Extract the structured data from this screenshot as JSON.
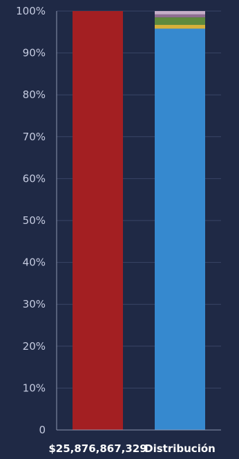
{
  "chart_data": {
    "type": "bar",
    "stacked": true,
    "categories": [
      "$25,876,867,329",
      "Distribución"
    ],
    "y_ticks": [
      "0",
      "10%",
      "20%",
      "30%",
      "40%",
      "50%",
      "60%",
      "70%",
      "80%",
      "90%",
      "100%"
    ],
    "ylim": [
      0,
      100
    ],
    "grid": true,
    "series": [
      {
        "values": [
          100,
          0
        ],
        "color": "#a31f22"
      },
      {
        "values": [
          0,
          95.8
        ],
        "color": "#3689cf"
      },
      {
        "values": [
          0,
          0.9
        ],
        "color": "#d6b13a"
      },
      {
        "values": [
          0,
          1.8
        ],
        "color": "#5e8a3c"
      },
      {
        "values": [
          0,
          0.7
        ],
        "color": "#8f6d92"
      },
      {
        "values": [
          0,
          0.8
        ],
        "color": "#c6aec8"
      }
    ]
  }
}
